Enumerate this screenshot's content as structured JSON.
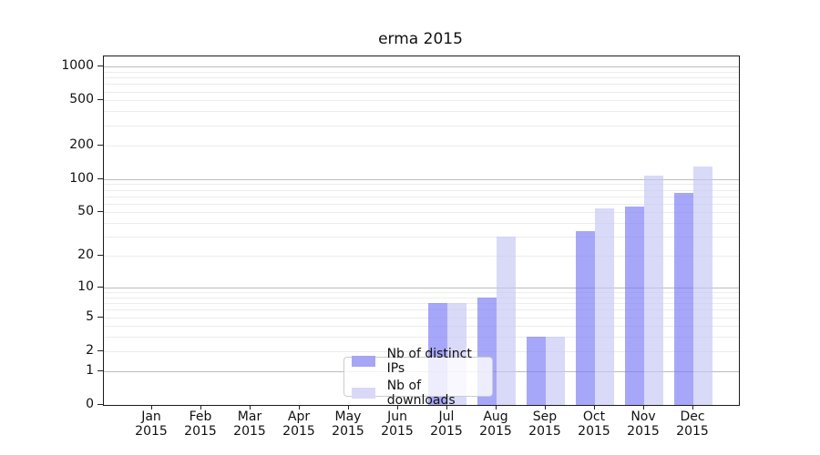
{
  "chart_data": {
    "type": "bar",
    "title": "erma 2015",
    "categories": [
      "Jan 2015",
      "Feb 2015",
      "Mar 2015",
      "Apr 2015",
      "May 2015",
      "Jun 2015",
      "Jul 2015",
      "Aug 2015",
      "Sep 2015",
      "Oct 2015",
      "Nov 2015",
      "Dec 2015"
    ],
    "series": [
      {
        "name": "Nb of distinct IPs",
        "values": [
          0,
          0,
          0,
          0,
          0,
          0,
          7,
          8,
          3,
          34,
          56,
          75
        ],
        "fill": "rgba(121,121,246,0.66)",
        "legend_color": "#a6a6f4"
      },
      {
        "name": "Nb of downloads",
        "values": [
          0,
          0,
          0,
          0,
          0,
          0,
          7,
          30,
          3,
          54,
          107,
          128
        ],
        "fill": "rgba(198,198,245,0.66)",
        "legend_color": "#d9d9f7"
      }
    ],
    "yscale": "log1p",
    "yticks": [
      0,
      1,
      2,
      5,
      10,
      20,
      50,
      100,
      200,
      500,
      1000
    ],
    "ylim": [
      0,
      1240
    ],
    "xlabel": "",
    "ylabel": "",
    "grid": true,
    "legend_position": "lower-center"
  }
}
